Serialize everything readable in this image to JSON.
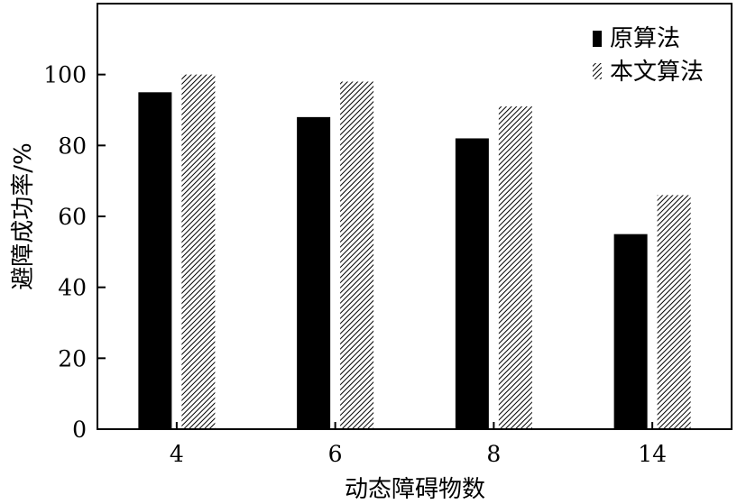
{
  "chart_data": {
    "type": "bar",
    "title": "",
    "xlabel": "动态障碍物数",
    "ylabel": "避障成功率/%",
    "categories": [
      "4",
      "6",
      "8",
      "14"
    ],
    "ylim": [
      0,
      120
    ],
    "yticks": [
      "0",
      "20",
      "40",
      "60",
      "80",
      "100"
    ],
    "series": [
      {
        "name": "原算法",
        "values": [
          95,
          88,
          82,
          55
        ],
        "fill": "solid",
        "color": "#000000"
      },
      {
        "name": "本文算法",
        "values": [
          100,
          98,
          91,
          66
        ],
        "fill": "diagonal-hatch",
        "color": "#000000"
      }
    ],
    "grid": false,
    "legend_position": "top-right"
  }
}
